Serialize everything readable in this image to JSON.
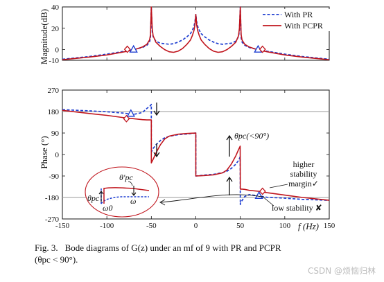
{
  "chart_data": [
    {
      "id": "magnitude",
      "type": "line",
      "ylabel": "Magnitude(dB)",
      "xlim": [
        -150,
        150
      ],
      "ylim": [
        -10,
        40
      ],
      "xticks": [
        "-150",
        "-100",
        "-50",
        "0",
        "50",
        "100",
        "150"
      ],
      "yticks": [
        "-10",
        "0",
        "20",
        "40"
      ],
      "ytick_values": [
        -10,
        0,
        20,
        40
      ],
      "legend": {
        "placement": "top-right",
        "entries": [
          "With PR",
          "With PCPR"
        ]
      },
      "series": [
        {
          "name": "With PR",
          "style": "dashed",
          "color": "#1f3fd1",
          "x": [
            -150,
            -120,
            -100,
            -80,
            -70,
            -60,
            -55,
            -52,
            -51,
            -50,
            -49,
            -48,
            -45,
            -40,
            -35,
            -30,
            -25,
            -20,
            -15,
            -10,
            -6,
            -4,
            -2,
            -1,
            0,
            1,
            2,
            4,
            6,
            10,
            15,
            20,
            25,
            30,
            35,
            40,
            45,
            48,
            49,
            50,
            51,
            52,
            55,
            60,
            70,
            80,
            100,
            120,
            150
          ],
          "y": [
            -9,
            -6.5,
            -4.2,
            -1.5,
            0,
            2,
            4,
            7,
            11,
            40,
            18,
            12,
            8,
            6,
            5.5,
            5,
            5.5,
            7,
            9,
            12,
            15,
            18,
            22,
            26,
            33,
            26,
            22,
            18,
            15,
            12,
            9,
            7,
            5.5,
            5,
            5.5,
            6,
            8,
            12,
            18,
            40,
            11,
            7,
            4,
            2,
            0,
            -1.5,
            -4.2,
            -6.5,
            -9
          ]
        },
        {
          "name": "With PCPR",
          "style": "solid",
          "color": "#c0141c",
          "x": [
            -150,
            -120,
            -100,
            -80,
            -70,
            -60,
            -55,
            -52,
            -51,
            -50,
            -49,
            -48,
            -45,
            -40,
            -35,
            -30,
            -25,
            -20,
            -15,
            -10,
            -6,
            -4,
            -2,
            -1,
            0,
            1,
            2,
            4,
            6,
            10,
            15,
            20,
            25,
            30,
            35,
            40,
            45,
            48,
            49,
            50,
            51,
            52,
            55,
            60,
            70,
            80,
            100,
            120,
            150
          ],
          "y": [
            -9.5,
            -7,
            -5,
            -2,
            -0.3,
            2.5,
            5,
            9,
            14,
            40,
            20,
            13,
            7,
            3,
            0,
            -2,
            -2.5,
            -1.5,
            1,
            5,
            9,
            13,
            18,
            23,
            33,
            23,
            18,
            13,
            9,
            5,
            1,
            -1.5,
            -2.5,
            -2,
            0,
            3,
            7,
            13,
            20,
            40,
            14,
            9,
            5,
            2.5,
            -0.3,
            -2,
            -5,
            -7,
            -9.5
          ]
        }
      ],
      "markers": [
        {
          "series": "With PR",
          "shape": "triangle",
          "x": -70,
          "y": 0.3
        },
        {
          "series": "With PCPR",
          "shape": "diamond",
          "x": -77,
          "y": 0.3
        },
        {
          "series": "With PR",
          "shape": "triangle",
          "x": 70,
          "y": 0.3
        },
        {
          "series": "With PCPR",
          "shape": "diamond",
          "x": 75,
          "y": 0.3
        }
      ]
    },
    {
      "id": "phase",
      "type": "line",
      "xlabel": "f (Hz)",
      "ylabel": "Phase (°)",
      "xlim": [
        -150,
        150
      ],
      "ylim": [
        -270,
        270
      ],
      "xticks": [
        "-150",
        "-100",
        "-50",
        "0",
        "50",
        "100",
        "150"
      ],
      "yticks": [
        "-270",
        "-180",
        "-90",
        "0",
        "90",
        "180",
        "270"
      ],
      "ytick_values": [
        -270,
        -180,
        -90,
        0,
        90,
        180,
        270
      ],
      "reference_lines": [
        180,
        -180
      ],
      "series": [
        {
          "name": "With PR",
          "style": "dashed",
          "color": "#1f3fd1",
          "x": [
            -150,
            -120,
            -100,
            -80,
            -70,
            -60,
            -55,
            -51,
            -50.01,
            -50,
            -48,
            -45,
            -40,
            -35,
            -30,
            -20,
            -10,
            -5,
            0,
            0.01,
            5,
            10,
            20,
            30,
            35,
            40,
            45,
            48,
            49.9,
            50,
            50.01,
            52,
            55,
            60,
            70,
            80,
            100,
            120,
            150
          ],
          "y": [
            188,
            183,
            179,
            173,
            168,
            176,
            193,
            205,
            210,
            10,
            25,
            40,
            58,
            70,
            76,
            83,
            86,
            88,
            90,
            -90,
            -88,
            -86,
            -83,
            -76,
            -70,
            -58,
            -40,
            -25,
            -10,
            -210,
            -205,
            -193,
            -176,
            -168,
            -173,
            -179,
            -183,
            -188,
            -192
          ]
        },
        {
          "name": "With PCPR",
          "style": "solid",
          "color": "#c0141c",
          "x": [
            -150,
            -120,
            -100,
            -80,
            -70,
            -60,
            -55,
            -51,
            -50.01,
            -50,
            -48,
            -45,
            -40,
            -35,
            -30,
            -20,
            -10,
            -5,
            0,
            0.01,
            5,
            10,
            20,
            30,
            35,
            40,
            45,
            48,
            49.9,
            50,
            50.01,
            52,
            55,
            60,
            70,
            80,
            100,
            120,
            150
          ],
          "y": [
            185,
            172,
            164,
            154,
            150,
            146,
            145,
            145,
            145,
            -35,
            -20,
            5,
            40,
            65,
            77,
            85,
            88,
            89,
            90,
            -90,
            -89,
            -88,
            -85,
            -77,
            -65,
            -40,
            -5,
            20,
            35,
            -145,
            -145,
            -145,
            -146,
            -150,
            -154,
            -160,
            -170,
            -180,
            -192
          ]
        }
      ],
      "markers": [
        {
          "series": "With PR",
          "shape": "triangle",
          "x": -73,
          "y": 172
        },
        {
          "series": "With PCPR",
          "shape": "diamond",
          "x": -78,
          "y": 150
        },
        {
          "series": "With PR",
          "shape": "triangle",
          "x": 71,
          "y": -172
        },
        {
          "series": "With PCPR",
          "shape": "diamond",
          "x": 75,
          "y": -154
        }
      ],
      "annotations": {
        "theta_pc_label": "θpc(<90°)",
        "higher_margin_lines": [
          "higher",
          "stability",
          "margin✓"
        ],
        "low_stability": "low stability ✘",
        "inset_theta_pc": "θpc",
        "inset_theta_pc_prime": "θ′pc",
        "inset_omega0": "ω0",
        "inset_omega": "ω"
      }
    }
  ],
  "caption": {
    "fig": "Fig. 3.",
    "text": "Bode diagrams of G(z) under an mf of 9 with PR and PCPR",
    "line2": "(θpc < 90°)."
  },
  "watermark": "CSDN @烦恼归林"
}
